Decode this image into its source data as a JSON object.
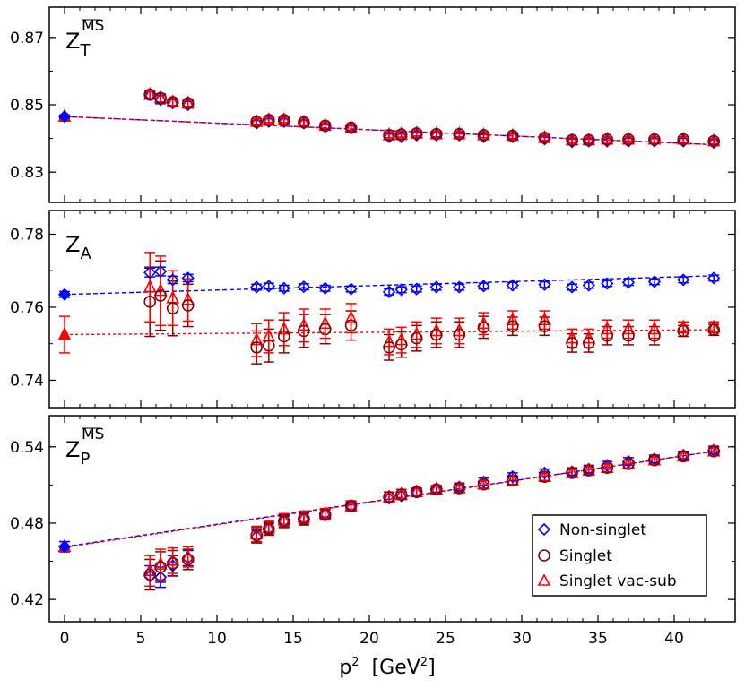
{
  "chart_data": {
    "type": "scatter",
    "xlabel": {
      "base": "p",
      "sup": "2",
      "unit_pre": "[GeV",
      "unit_sup": "2",
      "unit_post": "]"
    },
    "xlim": [
      -1,
      44
    ],
    "xticks": [
      0,
      5,
      10,
      15,
      20,
      25,
      30,
      35,
      40
    ],
    "legend": {
      "placement": "lower-right of bottom panel",
      "entries": [
        {
          "label": "Non-singlet",
          "marker": "diamond",
          "color": "#0000ff"
        },
        {
          "label": "Singlet",
          "marker": "circle",
          "color": "#8b0000"
        },
        {
          "label": "Singlet vac-sub",
          "marker": "triangle",
          "color": "#ff0000"
        }
      ]
    },
    "x": [
      5.6,
      6.3,
      7.1,
      8.1,
      12.6,
      13.4,
      14.4,
      15.7,
      17.1,
      18.8,
      21.3,
      22.1,
      23.1,
      24.4,
      25.9,
      27.5,
      29.4,
      31.5,
      33.3,
      34.4,
      35.6,
      37.0,
      38.7,
      40.6,
      42.6
    ],
    "panels": [
      {
        "label": {
          "base": "Z",
          "sub": "T",
          "sup": "MS"
        },
        "ylim": [
          0.821,
          0.879
        ],
        "yticks": [
          0.83,
          0.85,
          0.87
        ],
        "ytick_labels": [
          "0.83",
          "0.85",
          "0.87"
        ],
        "extrapolation": {
          "x": 0,
          "ns": 0.8465,
          "s": 0.8465,
          "vs": 0.8465,
          "err": 0.0005
        },
        "fit": {
          "ns": [
            0.8465,
            -0.000196
          ],
          "vs": [
            0.8465,
            -0.000196
          ]
        },
        "series": {
          "ns": [
            0.853,
            0.8515,
            0.8505,
            0.85,
            0.8445,
            0.845,
            0.845,
            0.8445,
            0.8435,
            0.843,
            0.8405,
            0.8405,
            0.841,
            0.841,
            0.841,
            0.8405,
            0.8405,
            0.8398,
            0.839,
            0.8392,
            0.8392,
            0.8392,
            0.8392,
            0.8392,
            0.8388
          ],
          "s": [
            0.853,
            0.852,
            0.8508,
            0.8505,
            0.845,
            0.8455,
            0.8455,
            0.8448,
            0.8438,
            0.8432,
            0.841,
            0.8412,
            0.8415,
            0.8413,
            0.8413,
            0.841,
            0.8408,
            0.8402,
            0.8395,
            0.8395,
            0.8397,
            0.8397,
            0.8397,
            0.8397,
            0.8392
          ],
          "vs": [
            0.853,
            0.852,
            0.8508,
            0.8505,
            0.845,
            0.8455,
            0.8455,
            0.8448,
            0.8438,
            0.8432,
            0.841,
            0.8412,
            0.8415,
            0.8413,
            0.8413,
            0.841,
            0.8408,
            0.8402,
            0.8395,
            0.8395,
            0.8397,
            0.8397,
            0.8397,
            0.8397,
            0.8392
          ],
          "err": [
            0.0012,
            0.0012,
            0.001,
            0.001,
            0.0008,
            0.0008,
            0.0008,
            0.0008,
            0.0008,
            0.0008,
            0.0008,
            0.0008,
            0.0008,
            0.0008,
            0.0008,
            0.0008,
            0.0008,
            0.0008,
            0.0008,
            0.0008,
            0.0008,
            0.0008,
            0.0008,
            0.0008,
            0.0008
          ]
        }
      },
      {
        "label": {
          "base": "Z",
          "sub": "A",
          "sup": ""
        },
        "ylim": [
          0.7325,
          0.7865
        ],
        "yticks": [
          0.74,
          0.76,
          0.78
        ],
        "ytick_labels": [
          "0.74",
          "0.76",
          "0.78"
        ],
        "extrapolation": {
          "x": 0,
          "ns": 0.7635,
          "s": 0.7525,
          "vs": 0.7525,
          "err_ns": 0.0008,
          "err_s": 0.005
        },
        "fit": {
          "ns": [
            0.7635,
            0.00012
          ],
          "vs": [
            0.7525,
            3.15e-05
          ]
        },
        "series": {
          "ns": [
            0.7695,
            0.7698,
            0.7675,
            0.768,
            0.7655,
            0.7658,
            0.7652,
            0.7656,
            0.7652,
            0.765,
            0.7642,
            0.7648,
            0.765,
            0.7655,
            0.7655,
            0.7658,
            0.766,
            0.7662,
            0.7655,
            0.766,
            0.7665,
            0.7668,
            0.767,
            0.7675,
            0.768
          ],
          "s": [
            0.7615,
            0.7632,
            0.7597,
            0.7605,
            0.749,
            0.7495,
            0.752,
            0.7535,
            0.754,
            0.755,
            0.749,
            0.7498,
            0.7515,
            0.7525,
            0.7525,
            0.7545,
            0.7548,
            0.7548,
            0.7502,
            0.7502,
            0.7522,
            0.7522,
            0.7522,
            0.7535,
            0.7538
          ],
          "vs": [
            0.7655,
            0.7645,
            0.7625,
            0.762,
            0.751,
            0.752,
            0.754,
            0.755,
            0.7555,
            0.757,
            0.7505,
            0.751,
            0.7525,
            0.7535,
            0.7535,
            0.7555,
            0.7565,
            0.7565,
            0.7515,
            0.7515,
            0.754,
            0.754,
            0.754,
            0.7545,
            0.7545
          ],
          "err_ns": [
            0.0012,
            0.0012,
            0.001,
            0.001,
            0.0008,
            0.0008,
            0.0008,
            0.0008,
            0.0008,
            0.0008,
            0.0008,
            0.0008,
            0.0008,
            0.0008,
            0.0008,
            0.0008,
            0.0008,
            0.0008,
            0.0008,
            0.0008,
            0.0008,
            0.0008,
            0.0008,
            0.0008,
            0.0008
          ],
          "err_s": [
            0.0095,
            0.0095,
            0.0075,
            0.0058,
            0.0045,
            0.0045,
            0.0045,
            0.0045,
            0.004,
            0.004,
            0.0035,
            0.0035,
            0.0035,
            0.0035,
            0.0035,
            0.003,
            0.0025,
            0.0025,
            0.0025,
            0.0025,
            0.0025,
            0.0025,
            0.0025,
            0.0015,
            0.0015
          ]
        }
      },
      {
        "label": {
          "base": "Z",
          "sub": "P",
          "sup": "MS"
        },
        "ylim": [
          0.4025,
          0.5645
        ],
        "yticks": [
          0.42,
          0.48,
          0.54
        ],
        "ytick_labels": [
          "0.42",
          "0.48",
          "0.54"
        ],
        "extrapolation": {
          "x": 0,
          "ns": 0.4615,
          "s": 0.4615,
          "vs": 0.4615,
          "err": 0.004
        },
        "fit": {
          "ns": [
            0.4615,
            0.00176
          ],
          "vs": [
            0.461,
            0.00177
          ]
        },
        "series": {
          "ns": [
            0.4385,
            0.4375,
            0.4465,
            0.4525,
            0.4695,
            0.4755,
            0.4815,
            0.4835,
            0.4875,
            0.4935,
            0.4995,
            0.5015,
            0.5045,
            0.5065,
            0.5085,
            0.5125,
            0.5165,
            0.5195,
            0.5205,
            0.5225,
            0.5255,
            0.5285,
            0.5305,
            0.5335,
            0.5375
          ],
          "s": [
            0.4395,
            0.4455,
            0.4485,
            0.4515,
            0.4705,
            0.4755,
            0.4815,
            0.4835,
            0.4865,
            0.4935,
            0.5005,
            0.5025,
            0.5045,
            0.5065,
            0.5075,
            0.5105,
            0.5135,
            0.5165,
            0.5195,
            0.5215,
            0.5235,
            0.5265,
            0.5295,
            0.5325,
            0.5365
          ],
          "vs": [
            0.4425,
            0.4475,
            0.4505,
            0.4535,
            0.4715,
            0.4765,
            0.4825,
            0.4845,
            0.4875,
            0.4935,
            0.5005,
            0.5025,
            0.5045,
            0.5065,
            0.5075,
            0.5105,
            0.5135,
            0.5165,
            0.5195,
            0.5215,
            0.5235,
            0.5265,
            0.5295,
            0.5325,
            0.5365
          ],
          "err_ns": [
            0.008,
            0.008,
            0.008,
            0.006,
            0.005,
            0.004,
            0.004,
            0.004,
            0.003,
            0.003,
            0.003,
            0.003,
            0.003,
            0.003,
            0.003,
            0.003,
            0.003,
            0.003,
            0.003,
            0.003,
            0.003,
            0.003,
            0.003,
            0.003,
            0.003
          ],
          "err_s": [
            0.012,
            0.012,
            0.01,
            0.008,
            0.006,
            0.005,
            0.005,
            0.005,
            0.004,
            0.004,
            0.004,
            0.004,
            0.003,
            0.003,
            0.003,
            0.003,
            0.003,
            0.003,
            0.003,
            0.003,
            0.003,
            0.003,
            0.003,
            0.003,
            0.003
          ]
        }
      }
    ]
  }
}
